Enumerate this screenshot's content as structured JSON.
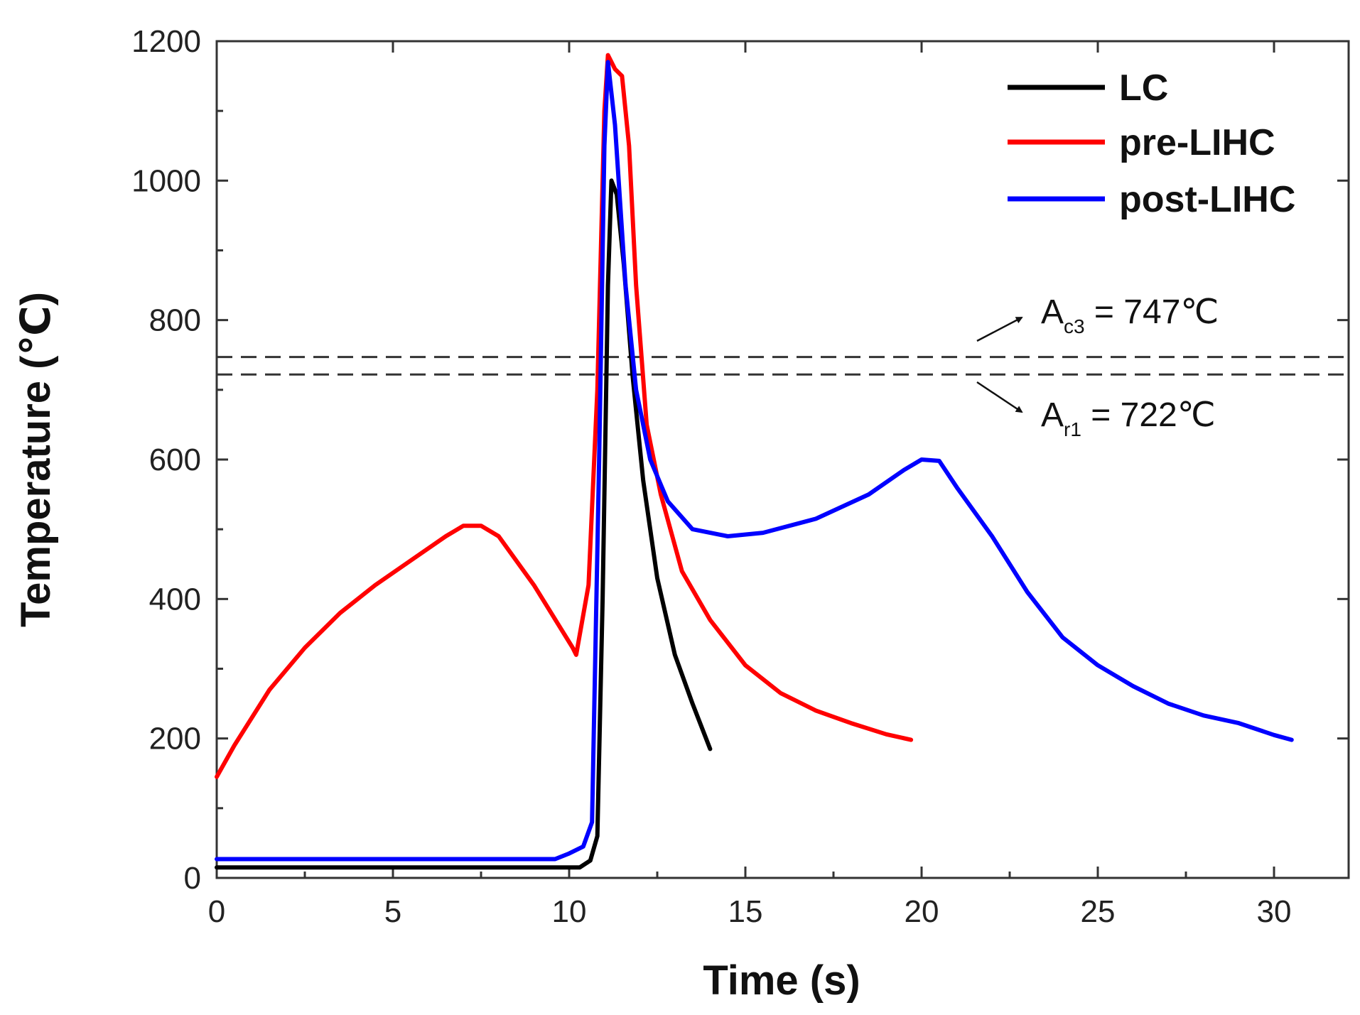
{
  "chart_data": {
    "type": "line",
    "title": "",
    "xlabel": "Time (s)",
    "ylabel": "Temperature (℃)",
    "xlim": [
      0,
      32
    ],
    "ylim": [
      0,
      1200
    ],
    "xticks": [
      0,
      5,
      10,
      15,
      20,
      25,
      30
    ],
    "yticks": [
      0,
      200,
      400,
      600,
      800,
      1000,
      1200
    ],
    "legend_position": "top-right",
    "series": [
      {
        "name": "LC",
        "color": "#000000",
        "points": [
          [
            0,
            15
          ],
          [
            10.3,
            15
          ],
          [
            10.6,
            25
          ],
          [
            10.8,
            60
          ],
          [
            10.95,
            400
          ],
          [
            11.1,
            850
          ],
          [
            11.2,
            1000
          ],
          [
            11.35,
            980
          ],
          [
            11.55,
            880
          ],
          [
            11.8,
            720
          ],
          [
            12.1,
            570
          ],
          [
            12.5,
            430
          ],
          [
            13.0,
            320
          ],
          [
            13.5,
            250
          ],
          [
            14.0,
            185
          ]
        ]
      },
      {
        "name": "pre-LIHC",
        "color": "#ff0000",
        "points": [
          [
            0,
            145
          ],
          [
            0.5,
            190
          ],
          [
            1.5,
            270
          ],
          [
            2.5,
            330
          ],
          [
            3.5,
            380
          ],
          [
            4.5,
            420
          ],
          [
            5.5,
            455
          ],
          [
            6.5,
            490
          ],
          [
            7.0,
            505
          ],
          [
            7.5,
            505
          ],
          [
            8.0,
            490
          ],
          [
            9.0,
            420
          ],
          [
            10.1,
            330
          ],
          [
            10.2,
            320
          ],
          [
            10.55,
            420
          ],
          [
            10.8,
            700
          ],
          [
            11.0,
            1100
          ],
          [
            11.1,
            1180
          ],
          [
            11.3,
            1160
          ],
          [
            11.5,
            1150
          ],
          [
            11.7,
            1050
          ],
          [
            11.9,
            850
          ],
          [
            12.2,
            650
          ],
          [
            12.6,
            550
          ],
          [
            13.2,
            440
          ],
          [
            14.0,
            370
          ],
          [
            15.0,
            305
          ],
          [
            16.0,
            265
          ],
          [
            17.0,
            240
          ],
          [
            18.0,
            222
          ],
          [
            19.0,
            206
          ],
          [
            19.7,
            198
          ]
        ]
      },
      {
        "name": "post-LIHC",
        "color": "#0000ff",
        "points": [
          [
            0,
            27
          ],
          [
            9.6,
            27
          ],
          [
            10.0,
            35
          ],
          [
            10.4,
            45
          ],
          [
            10.65,
            80
          ],
          [
            10.85,
            600
          ],
          [
            11.0,
            1050
          ],
          [
            11.1,
            1170
          ],
          [
            11.3,
            1080
          ],
          [
            11.6,
            850
          ],
          [
            11.9,
            700
          ],
          [
            12.3,
            600
          ],
          [
            12.8,
            540
          ],
          [
            13.5,
            500
          ],
          [
            14.5,
            490
          ],
          [
            15.5,
            495
          ],
          [
            17.0,
            515
          ],
          [
            18.5,
            550
          ],
          [
            19.5,
            585
          ],
          [
            20.0,
            600
          ],
          [
            20.5,
            598
          ],
          [
            21.0,
            560
          ],
          [
            22.0,
            490
          ],
          [
            23.0,
            410
          ],
          [
            24.0,
            345
          ],
          [
            25.0,
            305
          ],
          [
            26.0,
            275
          ],
          [
            27.0,
            250
          ],
          [
            28.0,
            233
          ],
          [
            29.0,
            222
          ],
          [
            30.0,
            205
          ],
          [
            30.5,
            198
          ]
        ]
      }
    ],
    "reference_lines": [
      {
        "y": 747,
        "style": "dashed",
        "label_main": "A",
        "label_sub": "c3",
        "label_rest": " = 747℃"
      },
      {
        "y": 722,
        "style": "dashed",
        "label_main": "A",
        "label_sub": "r1",
        "label_rest": " = 722℃"
      }
    ]
  }
}
